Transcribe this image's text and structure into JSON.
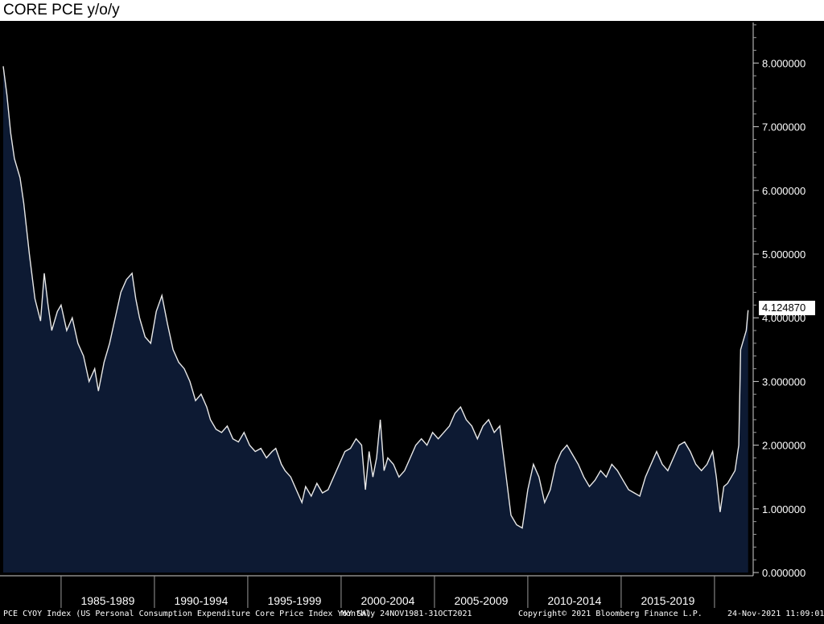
{
  "title": "CORE PCE y/o/y",
  "footer": {
    "left": "PCE CYOY Index (US Personal Consumption Expenditure Core Price Index YoY SA)",
    "mid": "Monthly 24NOV1981-31OCT2021",
    "copy": "Copyright© 2021 Bloomberg Finance L.P.",
    "right": "24-Nov-2021 11:09:01"
  },
  "colors": {
    "background": "#000000",
    "area_fill": "#0d1a33",
    "line": "#e8e8e8"
  },
  "chart_data": {
    "type": "area",
    "title": "CORE PCE y/o/y",
    "xlabel": "",
    "ylabel": "",
    "ylim": [
      0,
      8.8
    ],
    "xlim": [
      1981.9,
      2021.9
    ],
    "yticks": [
      "0.000000",
      "1.000000",
      "2.000000",
      "3.000000",
      "4.000000",
      "5.000000",
      "6.000000",
      "7.000000",
      "8.000000"
    ],
    "xtick_labels": [
      "1985-1989",
      "1990-1994",
      "1995-1999",
      "2000-2004",
      "2005-2009",
      "2010-2014",
      "2015-2019"
    ],
    "grid": false,
    "last_value_label": "4.124870",
    "series": [
      {
        "x": [
          1981.9,
          1982.1,
          1982.3,
          1982.5,
          1982.8,
          1983.0,
          1983.3,
          1983.6,
          1983.9,
          1984.1,
          1984.3,
          1984.5,
          1984.8,
          1985.0,
          1985.3,
          1985.6,
          1985.9,
          1986.2,
          1986.5,
          1986.8,
          1987.0,
          1987.3,
          1987.6,
          1987.9,
          1988.2,
          1988.5,
          1988.8,
          1989.0,
          1989.2,
          1989.5,
          1989.8,
          1990.1,
          1990.4,
          1990.7,
          1991.0,
          1991.3,
          1991.6,
          1991.9,
          1992.2,
          1992.5,
          1992.8,
          1993.0,
          1993.3,
          1993.6,
          1993.9,
          1994.2,
          1994.5,
          1994.8,
          1995.1,
          1995.4,
          1995.7,
          1996.0,
          1996.3,
          1996.5,
          1996.8,
          1997.0,
          1997.3,
          1997.6,
          1997.9,
          1998.1,
          1998.4,
          1998.7,
          1999.0,
          1999.3,
          1999.6,
          1999.9,
          2000.2,
          2000.5,
          2000.8,
          2001.1,
          2001.3,
          2001.5,
          2001.7,
          2001.9,
          2002.1,
          2002.3,
          2002.5,
          2002.8,
          2003.1,
          2003.4,
          2003.7,
          2004.0,
          2004.3,
          2004.6,
          2004.9,
          2005.2,
          2005.5,
          2005.8,
          2006.1,
          2006.4,
          2006.7,
          2007.0,
          2007.3,
          2007.6,
          2007.9,
          2008.2,
          2008.5,
          2008.8,
          2009.1,
          2009.4,
          2009.7,
          2010.0,
          2010.3,
          2010.6,
          2010.9,
          2011.2,
          2011.5,
          2011.8,
          2012.1,
          2012.4,
          2012.7,
          2013.0,
          2013.3,
          2013.6,
          2013.9,
          2014.2,
          2014.5,
          2014.8,
          2015.1,
          2015.4,
          2015.7,
          2016.0,
          2016.3,
          2016.6,
          2016.9,
          2017.2,
          2017.5,
          2017.8,
          2018.1,
          2018.4,
          2018.7,
          2019.0,
          2019.3,
          2019.6,
          2019.9,
          2020.1,
          2020.3,
          2020.5,
          2020.7,
          2020.9,
          2021.1,
          2021.3,
          2021.4,
          2021.5,
          2021.7,
          2021.8
        ],
        "values": [
          7.95,
          7.5,
          6.9,
          6.5,
          6.2,
          5.8,
          5.0,
          4.3,
          3.95,
          4.7,
          4.2,
          3.8,
          4.1,
          4.2,
          3.8,
          4.0,
          3.6,
          3.4,
          3.0,
          3.2,
          2.85,
          3.3,
          3.6,
          4.0,
          4.4,
          4.6,
          4.7,
          4.3,
          4.0,
          3.7,
          3.6,
          4.1,
          4.35,
          3.9,
          3.5,
          3.3,
          3.2,
          3.0,
          2.7,
          2.8,
          2.6,
          2.4,
          2.25,
          2.2,
          2.3,
          2.1,
          2.05,
          2.2,
          2.0,
          1.9,
          1.95,
          1.8,
          1.9,
          1.95,
          1.7,
          1.6,
          1.5,
          1.3,
          1.1,
          1.35,
          1.2,
          1.4,
          1.25,
          1.3,
          1.5,
          1.7,
          1.9,
          1.95,
          2.1,
          2.0,
          1.3,
          1.9,
          1.5,
          1.8,
          2.4,
          1.6,
          1.8,
          1.7,
          1.5,
          1.6,
          1.8,
          2.0,
          2.1,
          2.0,
          2.2,
          2.1,
          2.2,
          2.3,
          2.5,
          2.6,
          2.4,
          2.3,
          2.1,
          2.3,
          2.4,
          2.2,
          2.3,
          1.6,
          0.9,
          0.75,
          0.7,
          1.3,
          1.7,
          1.5,
          1.1,
          1.3,
          1.7,
          1.9,
          2.0,
          1.85,
          1.7,
          1.5,
          1.35,
          1.45,
          1.6,
          1.5,
          1.7,
          1.6,
          1.45,
          1.3,
          1.25,
          1.2,
          1.5,
          1.7,
          1.9,
          1.7,
          1.6,
          1.8,
          2.0,
          2.05,
          1.9,
          1.7,
          1.6,
          1.7,
          1.9,
          1.5,
          0.95,
          1.35,
          1.4,
          1.5,
          1.6,
          2.0,
          3.5,
          3.6,
          3.8,
          4.12
        ]
      }
    ]
  }
}
